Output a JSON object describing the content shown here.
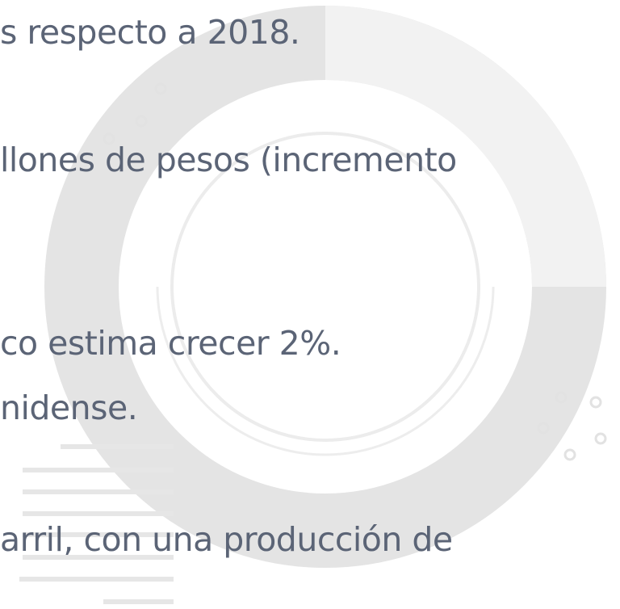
{
  "lines": [
    "s respecto a 2018.",
    "llones de pesos (incremento",
    "co estima crecer 2%.",
    "nidense.",
    "arril, con una producción de"
  ]
}
